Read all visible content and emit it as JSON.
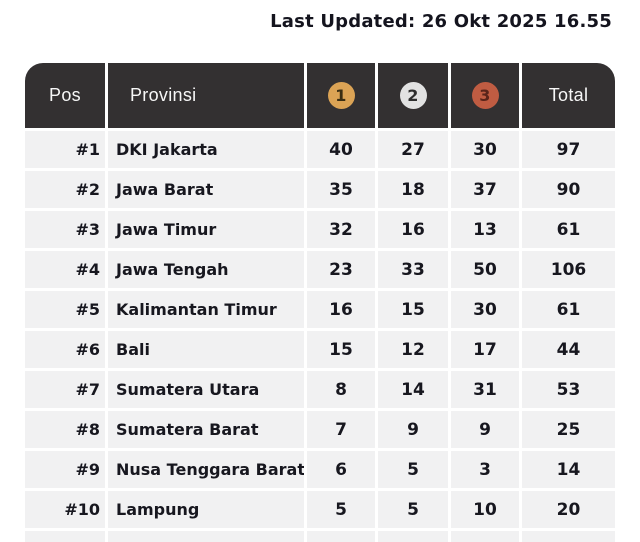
{
  "last_updated": "Last Updated: 26 Okt 2025 16.55",
  "colors": {
    "header_bg": "#333031",
    "header_text": "#f7f7f7",
    "cell_bg": "#f1f1f2",
    "body_text": "#17171f",
    "title_text": "#14141e",
    "page_bg": "#ffffff"
  },
  "table": {
    "headers": {
      "pos": "Pos",
      "provinsi": "Provinsi",
      "total": "Total"
    },
    "medals": [
      {
        "rank": "1",
        "label": "gold",
        "bg": "#dba355",
        "fg": "#3a2d12"
      },
      {
        "rank": "2",
        "label": "silver",
        "bg": "#e2e2e2",
        "fg": "#2e2e2e"
      },
      {
        "rank": "3",
        "label": "bronze",
        "bg": "#c05c42",
        "fg": "#5a241a"
      }
    ],
    "rows": [
      {
        "pos": "#1",
        "provinsi": "DKI Jakarta",
        "gold": "40",
        "silver": "27",
        "bronze": "30",
        "total": "97"
      },
      {
        "pos": "#2",
        "provinsi": "Jawa Barat",
        "gold": "35",
        "silver": "18",
        "bronze": "37",
        "total": "90"
      },
      {
        "pos": "#3",
        "provinsi": "Jawa Timur",
        "gold": "32",
        "silver": "16",
        "bronze": "13",
        "total": "61"
      },
      {
        "pos": "#4",
        "provinsi": "Jawa Tengah",
        "gold": "23",
        "silver": "33",
        "bronze": "50",
        "total": "106"
      },
      {
        "pos": "#5",
        "provinsi": "Kalimantan Timur",
        "gold": "16",
        "silver": "15",
        "bronze": "30",
        "total": "61"
      },
      {
        "pos": "#6",
        "provinsi": "Bali",
        "gold": "15",
        "silver": "12",
        "bronze": "17",
        "total": "44"
      },
      {
        "pos": "#7",
        "provinsi": "Sumatera Utara",
        "gold": "8",
        "silver": "14",
        "bronze": "31",
        "total": "53"
      },
      {
        "pos": "#8",
        "provinsi": "Sumatera Barat",
        "gold": "7",
        "silver": "9",
        "bronze": "9",
        "total": "25"
      },
      {
        "pos": "#9",
        "provinsi": "Nusa Tenggara Barat",
        "gold": "6",
        "silver": "5",
        "bronze": "3",
        "total": "14"
      },
      {
        "pos": "#10",
        "provinsi": "Lampung",
        "gold": "5",
        "silver": "5",
        "bronze": "10",
        "total": "20"
      }
    ]
  }
}
